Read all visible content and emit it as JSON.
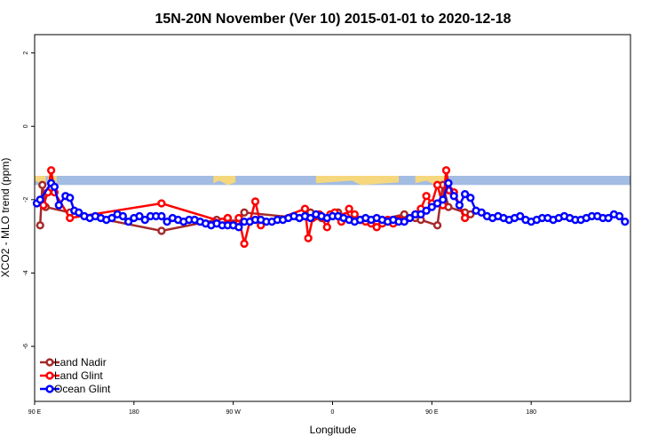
{
  "chart_data": {
    "type": "line",
    "title": "15N-20N November (Ver 10)   2015-01-01 to 2020-12-18",
    "xlabel": "Longitude",
    "ylabel": "XCO2 - MLO trend (ppm)",
    "xlim": [
      0,
      540
    ],
    "ylim": [
      -7.5,
      2.5
    ],
    "x_ticks": [
      {
        "value": 0,
        "label": "90 E"
      },
      {
        "value": 90,
        "label": "180"
      },
      {
        "value": 180,
        "label": "90 W"
      },
      {
        "value": 270,
        "label": "0"
      },
      {
        "value": 360,
        "label": "90 E"
      },
      {
        "value": 450,
        "label": "180"
      }
    ],
    "y_ticks": [
      {
        "value": 2,
        "label": "2"
      },
      {
        "value": 0,
        "label": "0"
      },
      {
        "value": -2,
        "label": "-2"
      },
      {
        "value": -4,
        "label": "-4"
      },
      {
        "value": -6,
        "label": "-6"
      }
    ],
    "map_band": {
      "ymin": -1.6,
      "ymax": -1.35,
      "ocean_color": "#a3bce2",
      "land_color": "#f5d77d"
    },
    "legend_position": "bottom-left",
    "series": [
      {
        "name": "Land Nadir",
        "color": "#a52a2a",
        "x": [
          5,
          7,
          10,
          32,
          115,
          165,
          175,
          180,
          185,
          190,
          240,
          250,
          255,
          260,
          270,
          275,
          295,
          305,
          335,
          345,
          350,
          365,
          370,
          375,
          390,
          395
        ],
        "y": [
          -2.7,
          -1.6,
          -2.2,
          -2.35,
          -2.85,
          -2.55,
          -2.5,
          -2.65,
          -2.6,
          -2.35,
          -2.5,
          -2.35,
          -2.45,
          -2.5,
          -2.45,
          -2.35,
          -2.55,
          -2.6,
          -2.4,
          -2.5,
          -2.55,
          -2.7,
          -1.6,
          -2.2,
          -2.35,
          -2.4
        ]
      },
      {
        "name": "Land Glint",
        "color": "#ff0000",
        "x": [
          8,
          12,
          15,
          18,
          32,
          115,
          170,
          175,
          180,
          185,
          190,
          195,
          200,
          205,
          245,
          248,
          252,
          258,
          265,
          268,
          272,
          278,
          282,
          285,
          290,
          295,
          300,
          305,
          310,
          315,
          320,
          325,
          330,
          345,
          350,
          355,
          360,
          365,
          370,
          373,
          376,
          380,
          390
        ],
        "y": [
          -2.15,
          -1.8,
          -1.2,
          -1.8,
          -2.5,
          -2.1,
          -2.6,
          -2.5,
          -2.7,
          -2.5,
          -3.2,
          -2.6,
          -2.05,
          -2.7,
          -2.25,
          -3.05,
          -2.5,
          -2.4,
          -2.75,
          -2.4,
          -2.35,
          -2.6,
          -2.45,
          -2.25,
          -2.4,
          -2.55,
          -2.6,
          -2.65,
          -2.75,
          -2.65,
          -2.55,
          -2.65,
          -2.55,
          -2.4,
          -2.25,
          -1.9,
          -2.1,
          -1.6,
          -2.15,
          -1.2,
          -1.75,
          -1.8,
          -2.5
        ]
      },
      {
        "name": "Ocean Glint",
        "color": "#0000ff",
        "x": [
          2,
          5,
          15,
          18,
          22,
          28,
          32,
          36,
          40,
          45,
          50,
          55,
          60,
          65,
          70,
          75,
          80,
          85,
          90,
          95,
          100,
          105,
          110,
          115,
          120,
          125,
          130,
          135,
          140,
          145,
          150,
          155,
          160,
          165,
          170,
          175,
          180,
          185,
          190,
          195,
          200,
          205,
          210,
          215,
          220,
          225,
          230,
          235,
          240,
          245,
          250,
          255,
          260,
          265,
          270,
          275,
          280,
          285,
          290,
          295,
          300,
          305,
          310,
          315,
          320,
          325,
          330,
          335,
          340,
          345,
          350,
          355,
          360,
          365,
          370,
          375,
          380,
          385,
          390,
          395,
          400,
          405,
          410,
          415,
          420,
          425,
          430,
          435,
          440,
          445,
          450,
          455,
          460,
          465,
          470,
          475,
          480,
          485,
          490,
          495,
          500,
          505,
          510,
          515,
          520,
          525,
          530,
          535
        ],
        "y": [
          -2.1,
          -2.0,
          -1.55,
          -1.65,
          -2.15,
          -1.9,
          -1.95,
          -2.3,
          -2.35,
          -2.45,
          -2.5,
          -2.45,
          -2.5,
          -2.55,
          -2.5,
          -2.4,
          -2.45,
          -2.6,
          -2.5,
          -2.45,
          -2.55,
          -2.45,
          -2.45,
          -2.45,
          -2.6,
          -2.5,
          -2.55,
          -2.6,
          -2.55,
          -2.55,
          -2.6,
          -2.65,
          -2.7,
          -2.65,
          -2.7,
          -2.7,
          -2.7,
          -2.75,
          -2.6,
          -2.6,
          -2.55,
          -2.55,
          -2.6,
          -2.6,
          -2.55,
          -2.55,
          -2.5,
          -2.45,
          -2.5,
          -2.45,
          -2.5,
          -2.4,
          -2.45,
          -2.5,
          -2.45,
          -2.45,
          -2.5,
          -2.55,
          -2.6,
          -2.55,
          -2.5,
          -2.55,
          -2.5,
          -2.55,
          -2.6,
          -2.55,
          -2.6,
          -2.6,
          -2.5,
          -2.4,
          -2.4,
          -2.3,
          -2.2,
          -2.1,
          -2.0,
          -1.55,
          -1.9,
          -2.15,
          -1.85,
          -1.95,
          -2.3,
          -2.35,
          -2.45,
          -2.5,
          -2.45,
          -2.5,
          -2.55,
          -2.5,
          -2.45,
          -2.55,
          -2.6,
          -2.55,
          -2.5,
          -2.5,
          -2.55,
          -2.5,
          -2.45,
          -2.5,
          -2.55,
          -2.55,
          -2.5,
          -2.45,
          -2.45,
          -2.5,
          -2.5,
          -2.4,
          -2.45,
          -2.6
        ]
      }
    ]
  }
}
